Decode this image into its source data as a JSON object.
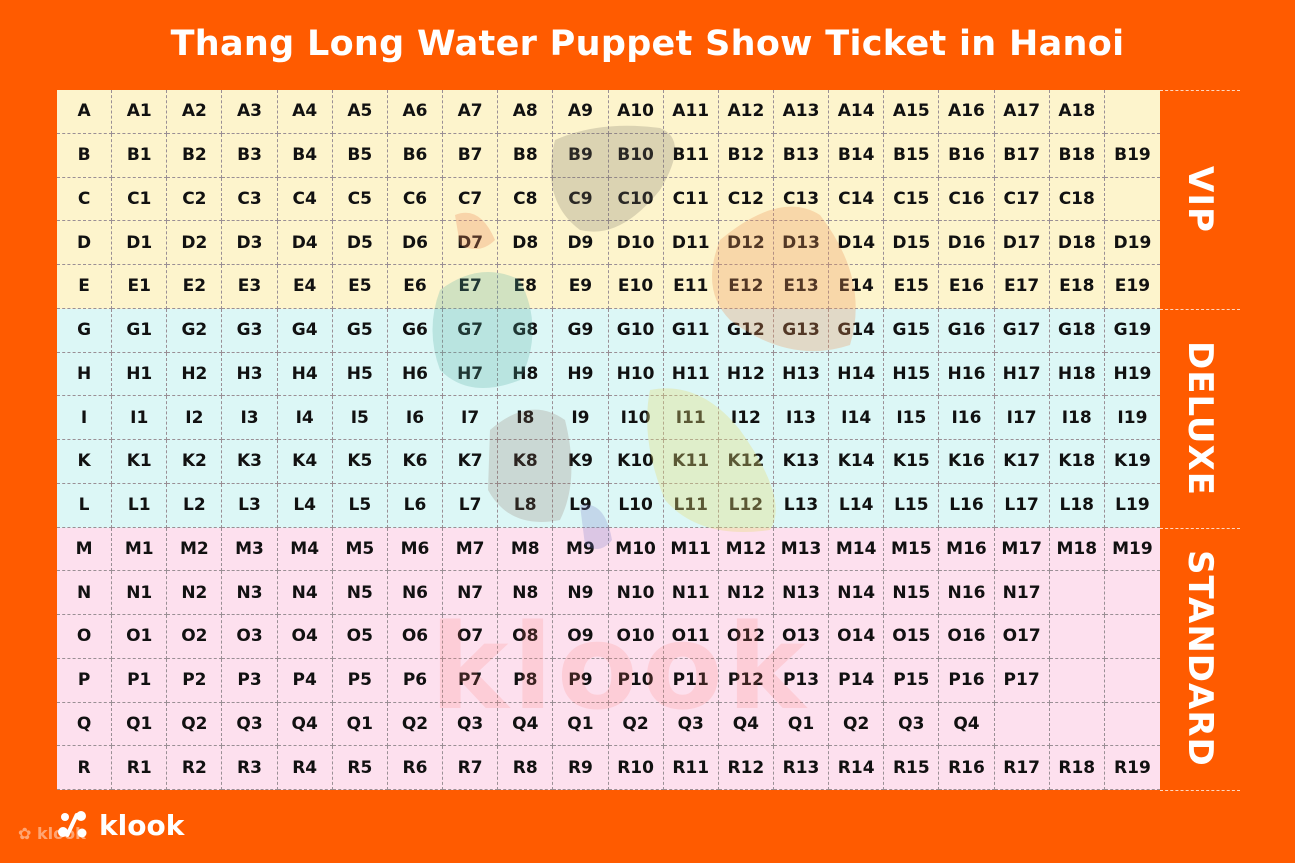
{
  "title": "Thang Long Water Puppet Show Ticket in Hanoi",
  "colors": {
    "background": "#ff5b00",
    "vip": "#fdf4cc",
    "deluxe": "#dcf7f6",
    "standard": "#fde0ee"
  },
  "sections": [
    {
      "label": "VIP",
      "rows": [
        "A",
        "B",
        "C",
        "D",
        "E"
      ]
    },
    {
      "label": "DELUXE",
      "rows": [
        "G",
        "H",
        "I",
        "K",
        "L"
      ]
    },
    {
      "label": "STANDARD",
      "rows": [
        "M",
        "N",
        "O",
        "P",
        "Q",
        "R"
      ]
    }
  ],
  "rows": [
    {
      "label": "A",
      "section": "vip",
      "seats": [
        "A1",
        "A2",
        "A3",
        "A4",
        "A5",
        "A6",
        "A7",
        "A8",
        "A9",
        "A10",
        "A11",
        "A12",
        "A13",
        "A14",
        "A15",
        "A16",
        "A17",
        "A18"
      ]
    },
    {
      "label": "B",
      "section": "vip",
      "seats": [
        "B1",
        "B2",
        "B3",
        "B4",
        "B5",
        "B6",
        "B7",
        "B8",
        "B9",
        "B10",
        "B11",
        "B12",
        "B13",
        "B14",
        "B15",
        "B16",
        "B17",
        "B18",
        "B19"
      ]
    },
    {
      "label": "C",
      "section": "vip",
      "seats": [
        "C1",
        "C2",
        "C3",
        "C4",
        "C5",
        "C6",
        "C7",
        "C8",
        "C9",
        "C10",
        "C11",
        "C12",
        "C13",
        "C14",
        "C15",
        "C16",
        "C17",
        "C18"
      ]
    },
    {
      "label": "D",
      "section": "vip",
      "seats": [
        "D1",
        "D2",
        "D3",
        "D4",
        "D5",
        "D6",
        "D7",
        "D8",
        "D9",
        "D10",
        "D11",
        "D12",
        "D13",
        "D14",
        "D15",
        "D16",
        "D17",
        "D18",
        "D19"
      ]
    },
    {
      "label": "E",
      "section": "vip",
      "seats": [
        "E1",
        "E2",
        "E3",
        "E4",
        "E5",
        "E6",
        "E7",
        "E8",
        "E9",
        "E10",
        "E11",
        "E12",
        "E13",
        "E14",
        "E15",
        "E16",
        "E17",
        "E18",
        "E19"
      ]
    },
    {
      "label": "G",
      "section": "deluxe",
      "seats": [
        "G1",
        "G2",
        "G3",
        "G4",
        "G5",
        "G6",
        "G7",
        "G8",
        "G9",
        "G10",
        "G11",
        "G12",
        "G13",
        "G14",
        "G15",
        "G16",
        "G17",
        "G18",
        "G19"
      ]
    },
    {
      "label": "H",
      "section": "deluxe",
      "seats": [
        "H1",
        "H2",
        "H3",
        "H4",
        "H5",
        "H6",
        "H7",
        "H8",
        "H9",
        "H10",
        "H11",
        "H12",
        "H13",
        "H14",
        "H15",
        "H16",
        "H17",
        "H18",
        "H19"
      ]
    },
    {
      "label": "I",
      "section": "deluxe",
      "seats": [
        "I1",
        "I2",
        "I3",
        "I4",
        "I5",
        "I6",
        "I7",
        "I8",
        "I9",
        "I10",
        "I11",
        "I12",
        "I13",
        "I14",
        "I15",
        "I16",
        "I17",
        "I18",
        "I19"
      ]
    },
    {
      "label": "K",
      "section": "deluxe",
      "seats": [
        "K1",
        "K2",
        "K3",
        "K4",
        "K5",
        "K6",
        "K7",
        "K8",
        "K9",
        "K10",
        "K11",
        "K12",
        "K13",
        "K14",
        "K15",
        "K16",
        "K17",
        "K18",
        "K19"
      ]
    },
    {
      "label": "L",
      "section": "deluxe",
      "seats": [
        "L1",
        "L2",
        "L3",
        "L4",
        "L5",
        "L6",
        "L7",
        "L8",
        "L9",
        "L10",
        "L11",
        "L12",
        "L13",
        "L14",
        "L15",
        "L16",
        "L17",
        "L18",
        "L19"
      ]
    },
    {
      "label": "M",
      "section": "standard",
      "seats": [
        "M1",
        "M2",
        "M3",
        "M4",
        "M5",
        "M6",
        "M7",
        "M8",
        "M9",
        "M10",
        "M11",
        "M12",
        "M13",
        "M14",
        "M15",
        "M16",
        "M17",
        "M18",
        "M19"
      ]
    },
    {
      "label": "N",
      "section": "standard",
      "seats": [
        "N1",
        "N2",
        "N3",
        "N4",
        "N5",
        "N6",
        "N7",
        "N8",
        "N9",
        "N10",
        "N11",
        "N12",
        "N13",
        "N14",
        "N15",
        "N16",
        "N17"
      ]
    },
    {
      "label": "O",
      "section": "standard",
      "seats": [
        "O1",
        "O2",
        "O3",
        "O4",
        "O5",
        "O6",
        "O7",
        "O8",
        "O9",
        "O10",
        "O11",
        "O12",
        "O13",
        "O14",
        "O15",
        "O16",
        "O17"
      ]
    },
    {
      "label": "P",
      "section": "standard",
      "seats": [
        "P1",
        "P2",
        "P3",
        "P4",
        "P5",
        "P6",
        "P7",
        "P8",
        "P9",
        "P10",
        "P11",
        "P12",
        "P13",
        "P14",
        "P15",
        "P16",
        "P17"
      ]
    },
    {
      "label": "Q",
      "section": "standard",
      "seats": [
        "Q1",
        "Q2",
        "Q3",
        "Q4",
        "Q1",
        "Q2",
        "Q3",
        "Q4",
        "Q1",
        "Q2",
        "Q3",
        "Q4",
        "Q1",
        "Q2",
        "Q3",
        "Q4"
      ]
    },
    {
      "label": "R",
      "section": "standard",
      "seats": [
        "R1",
        "R2",
        "R3",
        "R4",
        "R5",
        "R6",
        "R7",
        "R8",
        "R9",
        "R10",
        "R11",
        "R12",
        "R13",
        "R14",
        "R15",
        "R16",
        "R17",
        "R18",
        "R19"
      ]
    }
  ],
  "watermark": "klook",
  "logo": "klook"
}
